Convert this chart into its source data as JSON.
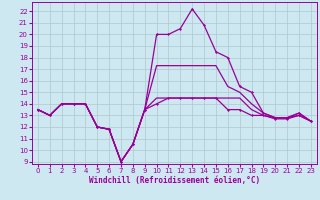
{
  "xlabel": "Windchill (Refroidissement éolien,°C)",
  "bg_color": "#cde8f0",
  "line_color": "#990099",
  "grid_color": "#b0c8d0",
  "xlim": [
    -0.5,
    23.5
  ],
  "ylim": [
    8.8,
    22.8
  ],
  "yticks": [
    9,
    10,
    11,
    12,
    13,
    14,
    15,
    16,
    17,
    18,
    19,
    20,
    21,
    22
  ],
  "xticks": [
    0,
    1,
    2,
    3,
    4,
    5,
    6,
    7,
    8,
    9,
    10,
    11,
    12,
    13,
    14,
    15,
    16,
    17,
    18,
    19,
    20,
    21,
    22,
    23
  ],
  "y_flat": [
    13.5,
    13.0,
    14.0,
    14.0,
    14.0,
    12.0,
    11.8,
    9.0,
    10.5,
    13.5,
    14.0,
    14.5,
    14.5,
    14.5,
    14.5,
    14.5,
    13.5,
    13.5,
    13.0,
    13.0,
    12.7,
    12.7,
    13.0,
    12.5
  ],
  "y_peak": [
    13.5,
    13.0,
    14.0,
    14.0,
    14.0,
    12.0,
    11.8,
    9.0,
    10.5,
    13.5,
    20.0,
    20.0,
    20.5,
    22.2,
    20.8,
    18.5,
    18.0,
    15.5,
    15.0,
    13.2,
    12.8,
    12.8,
    13.2,
    12.5
  ],
  "y_mid1": [
    13.5,
    13.0,
    14.0,
    14.0,
    14.0,
    12.0,
    11.8,
    9.0,
    10.5,
    13.5,
    17.3,
    17.3,
    17.3,
    17.3,
    17.3,
    17.3,
    15.5,
    15.0,
    14.0,
    13.2,
    12.8,
    12.8,
    13.2,
    12.5
  ],
  "y_mid2": [
    13.5,
    13.0,
    14.0,
    14.0,
    14.0,
    12.0,
    11.8,
    9.0,
    10.5,
    13.5,
    14.5,
    14.5,
    14.5,
    14.5,
    14.5,
    14.5,
    14.5,
    14.5,
    13.5,
    13.0,
    12.8,
    12.8,
    13.0,
    12.5
  ]
}
